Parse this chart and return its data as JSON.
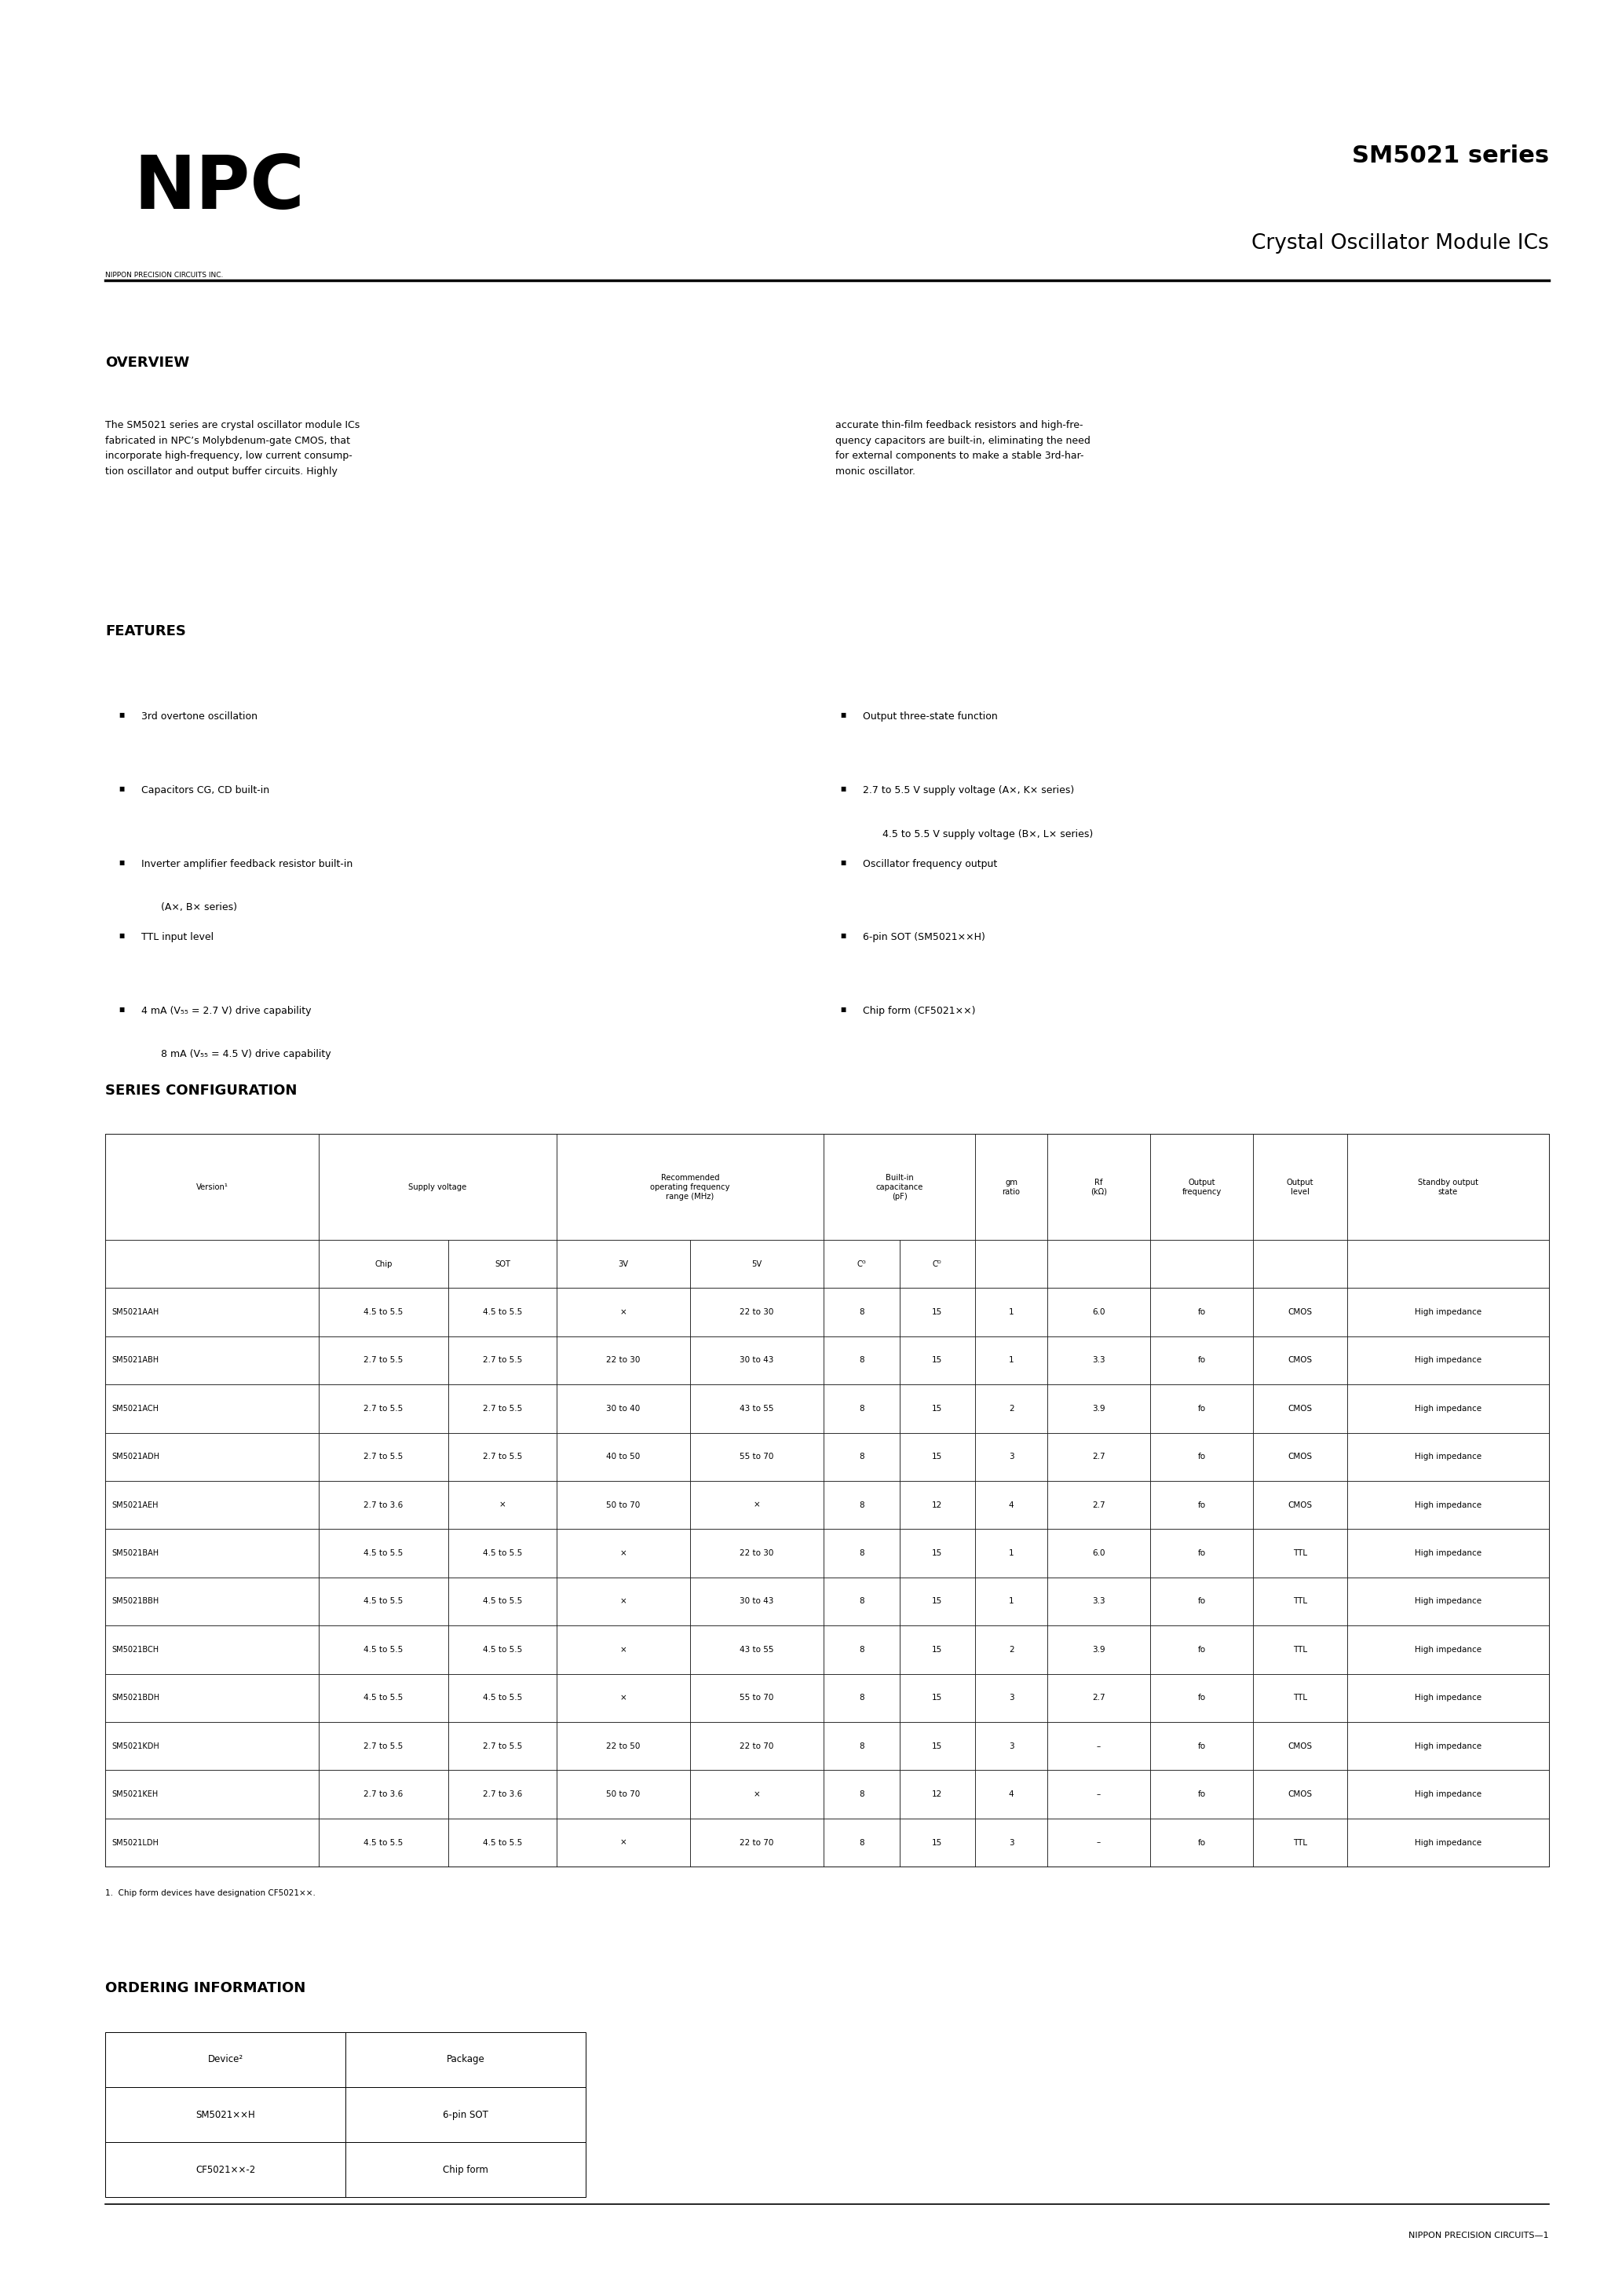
{
  "page_width": 20.66,
  "page_height": 29.24,
  "bg_color": "#ffffff",
  "title_series": "SM5021 series",
  "title_product": "Crystal Oscillator Module ICs",
  "company": "NPC",
  "company_sub": "NIPPON PRECISION CIRCUITS INC.",
  "overview_title": "OVERVIEW",
  "overview_text_left": "The SM5021 series are crystal oscillator module ICs\nfabricated in NPC’s Molybdenum-gate CMOS, that\nincorporate high-frequency, low current consump-\ntion oscillator and output buffer circuits. Highly",
  "overview_text_right": "accurate thin-film feedback resistors and high-fre-\nquency capacitors are built-in, eliminating the need\nfor external components to make a stable 3rd-har-\nmonic oscillator.",
  "features_title": "FEATURES",
  "features_left": [
    "3rd overtone oscillation",
    "Capacitors CG, CD built-in",
    "Inverter amplifier feedback resistor built-in\n(A×, B× series)",
    "TTL input level",
    "4 mA (V₅₅ = 2.7 V) drive capability\n8 mA (V₅₅ = 4.5 V) drive capability"
  ],
  "features_right": [
    "Output three-state function",
    "2.7 to 5.5 V supply voltage (A×, K× series)\n4.5 to 5.5 V supply voltage (B×, L× series)",
    "Oscillator frequency output",
    "6-pin SOT (SM5021××H)",
    "Chip form (CF5021××)"
  ],
  "series_config_title": "SERIES CONFIGURATION",
  "table_rows": [
    [
      "SM5021AAH",
      "4.5 to 5.5",
      "4.5 to 5.5",
      "×",
      "22 to 30",
      "8",
      "15",
      "1",
      "6.0",
      "fo",
      "CMOS",
      "High impedance"
    ],
    [
      "SM5021ABH",
      "2.7 to 5.5",
      "2.7 to 5.5",
      "22 to 30",
      "30 to 43",
      "8",
      "15",
      "1",
      "3.3",
      "fo",
      "CMOS",
      "High impedance"
    ],
    [
      "SM5021ACH",
      "2.7 to 5.5",
      "2.7 to 5.5",
      "30 to 40",
      "43 to 55",
      "8",
      "15",
      "2",
      "3.9",
      "fo",
      "CMOS",
      "High impedance"
    ],
    [
      "SM5021ADH",
      "2.7 to 5.5",
      "2.7 to 5.5",
      "40 to 50",
      "55 to 70",
      "8",
      "15",
      "3",
      "2.7",
      "fo",
      "CMOS",
      "High impedance"
    ],
    [
      "SM5021AEH",
      "2.7 to 3.6",
      "×",
      "50 to 70",
      "×",
      "8",
      "12",
      "4",
      "2.7",
      "fo",
      "CMOS",
      "High impedance"
    ],
    [
      "SM5021BAH",
      "4.5 to 5.5",
      "4.5 to 5.5",
      "×",
      "22 to 30",
      "8",
      "15",
      "1",
      "6.0",
      "fo",
      "TTL",
      "High impedance"
    ],
    [
      "SM5021BBH",
      "4.5 to 5.5",
      "4.5 to 5.5",
      "×",
      "30 to 43",
      "8",
      "15",
      "1",
      "3.3",
      "fo",
      "TTL",
      "High impedance"
    ],
    [
      "SM5021BCH",
      "4.5 to 5.5",
      "4.5 to 5.5",
      "×",
      "43 to 55",
      "8",
      "15",
      "2",
      "3.9",
      "fo",
      "TTL",
      "High impedance"
    ],
    [
      "SM5021BDH",
      "4.5 to 5.5",
      "4.5 to 5.5",
      "×",
      "55 to 70",
      "8",
      "15",
      "3",
      "2.7",
      "fo",
      "TTL",
      "High impedance"
    ],
    [
      "SM5021KDH",
      "2.7 to 5.5",
      "2.7 to 5.5",
      "22 to 50",
      "22 to 70",
      "8",
      "15",
      "3",
      "–",
      "fo",
      "CMOS",
      "High impedance"
    ],
    [
      "SM5021KEH",
      "2.7 to 3.6",
      "2.7 to 3.6",
      "50 to 70",
      "×",
      "8",
      "12",
      "4",
      "–",
      "fo",
      "CMOS",
      "High impedance"
    ],
    [
      "SM5021LDH",
      "4.5 to 5.5",
      "4.5 to 5.5",
      "×",
      "22 to 70",
      "8",
      "15",
      "3",
      "–",
      "fo",
      "TTL",
      "High impedance"
    ]
  ],
  "footnote": "1.  Chip form devices have designation CF5021××.",
  "ordering_title": "ORDERING INFORMATION",
  "ordering_headers": [
    "Device²",
    "Package"
  ],
  "ordering_rows": [
    [
      "SM5021××H",
      "6-pin SOT"
    ],
    [
      "CF5021××-2",
      "Chip form"
    ]
  ],
  "footer_text": "NIPPON PRECISION CIRCUITS—1"
}
